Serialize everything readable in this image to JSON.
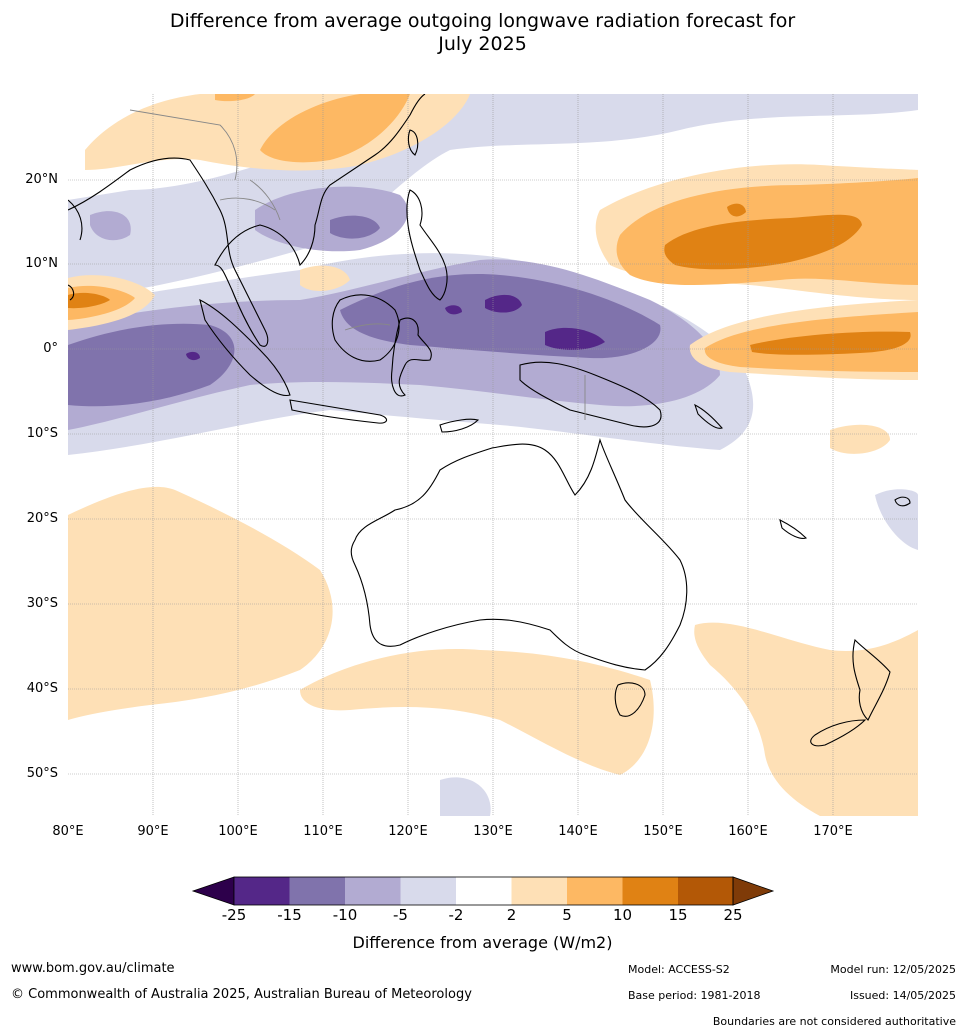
{
  "title": {
    "line1": "Difference from average outgoing longwave radiation forecast for",
    "line2": "July 2025"
  },
  "axes": {
    "lat_labels": [
      "20°N",
      "10°N",
      "0°",
      "10°S",
      "20°S",
      "30°S",
      "40°S",
      "50°S"
    ],
    "lon_labels": [
      "80°E",
      "90°E",
      "100°E",
      "110°E",
      "120°E",
      "130°E",
      "140°E",
      "150°E",
      "160°E",
      "170°E"
    ]
  },
  "colorbar": {
    "title": "Difference from average (W/m2)",
    "ticks": [
      "-25",
      "-15",
      "-10",
      "-5",
      "-2",
      "2",
      "5",
      "10",
      "15",
      "25"
    ],
    "colors": {
      "below_min": "#2d004b",
      "c1": "#542788",
      "c2": "#8073ac",
      "c3": "#b2abd2",
      "c4": "#d8daeb",
      "neutral": "#ffffff",
      "w1": "#fee0b6",
      "w2": "#fdb863",
      "w3": "#e08214",
      "w4": "#b35806",
      "above_max": "#7f3b08"
    }
  },
  "footer": {
    "website": "www.bom.gov.au/climate",
    "copyright": "© Commonwealth of Australia 2025, Australian Bureau of Meteorology",
    "model": "Model: ACCESS-S2",
    "base_period": "Base period: 1981-2018",
    "model_run": "Model run: 12/05/2025",
    "issued": "Issued: 14/05/2025",
    "disclaimer": "Boundaries are not considered authoritative"
  }
}
